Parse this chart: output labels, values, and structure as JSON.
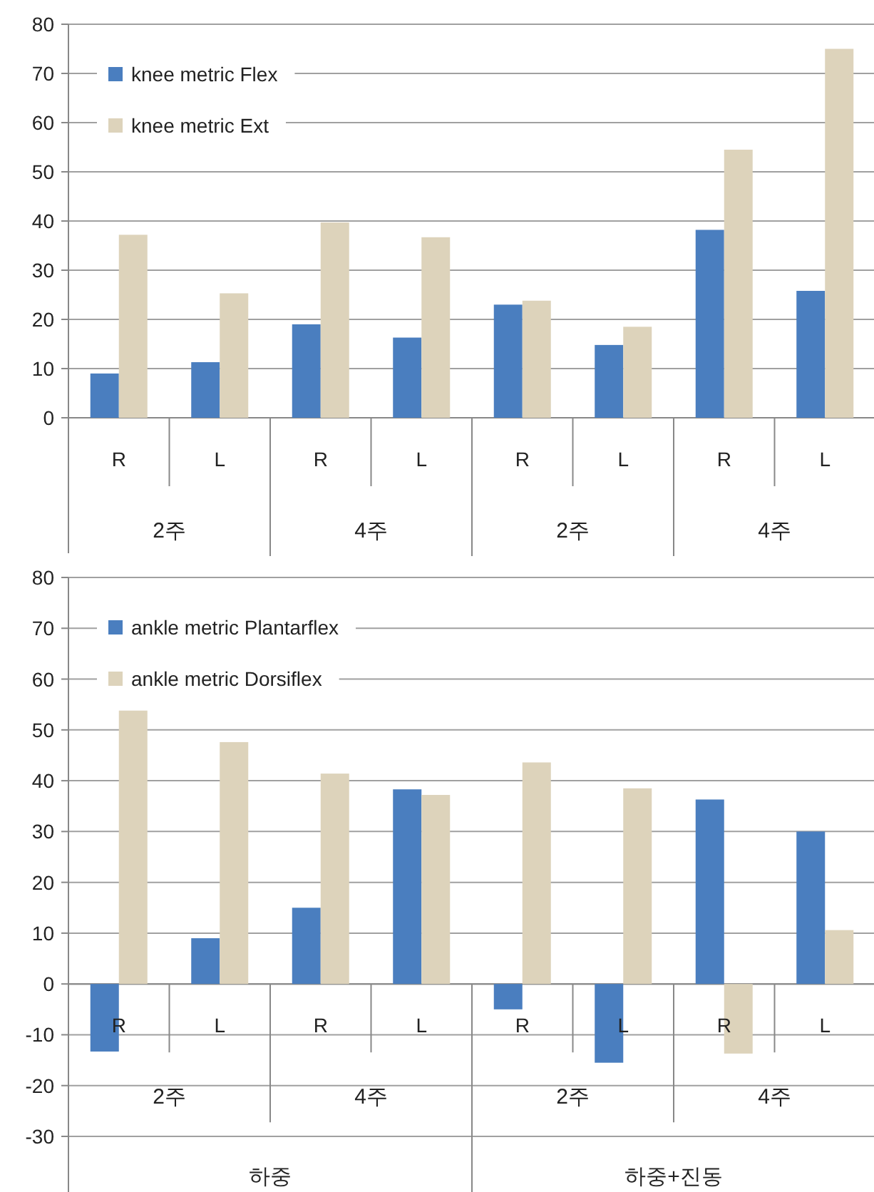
{
  "chart_data": [
    {
      "type": "bar",
      "categories": [
        "R",
        "L",
        "R",
        "L",
        "R",
        "L",
        "R",
        "L"
      ],
      "series": [
        {
          "name": "knee metric  Flex",
          "color": "#4a7ebf",
          "values": [
            9,
            11.3,
            19,
            16.3,
            23,
            14.8,
            38.2,
            25.8
          ]
        },
        {
          "name": "knee metric  Ext",
          "color": "#ddd3bb",
          "values": [
            37.2,
            25.3,
            39.7,
            36.7,
            23.8,
            18.5,
            54.5,
            75
          ]
        }
      ],
      "ylim": [
        0,
        80
      ],
      "yticks": [
        0,
        10,
        20,
        30,
        40,
        50,
        60,
        70,
        80
      ],
      "grid": "y",
      "legend": "top left",
      "annotations": [
        "2주",
        "4주",
        "2주",
        "4주"
      ]
    },
    {
      "type": "bar",
      "categories": [
        "R",
        "L",
        "R",
        "L",
        "R",
        "L",
        "R",
        "L"
      ],
      "series": [
        {
          "name": "ankle metric Plantarflex",
          "color": "#4a7ebf",
          "values": [
            -13.3,
            9,
            15,
            38.3,
            -5,
            -15.5,
            36.3,
            30
          ]
        },
        {
          "name": "ankle metric Dorsiflex",
          "color": "#ddd3bb",
          "values": [
            53.8,
            47.6,
            41.4,
            37.2,
            43.6,
            38.5,
            -13.7,
            10.6
          ]
        }
      ],
      "ylim": [
        -30,
        80
      ],
      "yticks": [
        -30,
        -20,
        -10,
        0,
        10,
        20,
        30,
        40,
        50,
        60,
        70,
        80
      ],
      "grid": "y",
      "legend": "top left",
      "annotations": [
        "2주",
        "4주",
        "2주",
        "4주",
        "하중",
        "하중+진동"
      ]
    }
  ]
}
